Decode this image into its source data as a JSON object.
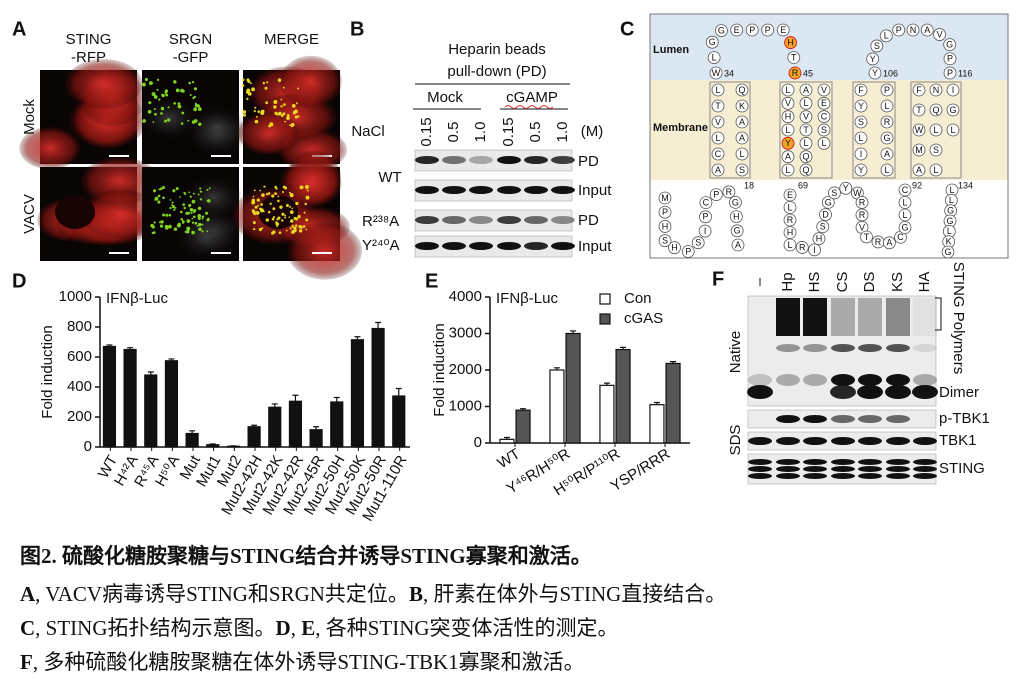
{
  "panel_a": {
    "panel_label": "A",
    "columns": [
      [
        "STING",
        "-RFP"
      ],
      [
        "SRGN",
        "-GFP"
      ],
      [
        "MERGE"
      ]
    ],
    "rows": [
      "Mock",
      "VACV"
    ]
  },
  "panel_b": {
    "panel_label": "B",
    "header": [
      "Heparin beads",
      "pull-down (PD)"
    ],
    "groups": [
      "Mock",
      "cGAMP"
    ],
    "salt_label": "NaCl",
    "concentrations": [
      "0.15",
      "0.5",
      "1.0",
      "0.15",
      "0.5",
      "1.0"
    ],
    "unit": "(M)",
    "rows": [
      {
        "name": "WT",
        "blots": [
          "PD",
          "Input"
        ]
      },
      {
        "name": "R²³⁸A",
        "blots": [
          "PD"
        ]
      },
      {
        "name": "Y²⁴⁰A",
        "blots": [
          "Input"
        ]
      }
    ]
  },
  "panel_c": {
    "panel_label": "C",
    "regions": [
      "Lumen",
      "Membrane"
    ],
    "segments": [
      "WLGGEPPEHTR",
      "YYSLPNAVGPP",
      "LTVLCASLAAKQ",
      "LVHLYALQQLTVLAVECSL",
      "FYSLIYLAGRLP",
      "FTWMALSLQNIGL",
      "MPHSHPSIPCPRGHGA",
      "ELRHLRIHSDGSYWRRVTRACGLLC",
      "LLGGLKG"
    ],
    "numbers": [
      34,
      45,
      106,
      116,
      18,
      69,
      92,
      134
    ]
  },
  "chart_data": [
    {
      "type": "bar",
      "panel_label": "D",
      "annotation": "IFNβ-Luc",
      "y_label": "Fold induction",
      "categories": [
        "WT",
        "H⁴²A",
        "R⁴⁵A",
        "H⁵⁰A",
        "Mut",
        "Mut1",
        "Mut2",
        "Mut2-42H",
        "Mut2-42K",
        "Mut2-42R",
        "Mut2-45R",
        "Mut2-50H",
        "Mut2-50K",
        "Mut2-50R",
        "Mut1-110R"
      ],
      "series": [
        {
          "color": "#111111",
          "values": [
            670,
            650,
            480,
            575,
            90,
            15,
            5,
            135,
            265,
            305,
            115,
            300,
            715,
            790,
            340
          ],
          "errors": [
            10,
            12,
            20,
            12,
            18,
            5,
            3,
            10,
            22,
            40,
            20,
            30,
            20,
            40,
            50
          ]
        }
      ],
      "ylim": [
        0,
        1000
      ],
      "yticks": [
        0,
        200,
        400,
        600,
        800,
        1000
      ]
    },
    {
      "type": "bar",
      "panel_label": "E",
      "annotation": "IFNβ-Luc",
      "y_label": "Fold induction",
      "categories": [
        "WT",
        "Y⁴⁶R/H⁵⁰R",
        "H⁵⁰R/P¹¹⁰R",
        "YSP/RRR"
      ],
      "series": [
        {
          "name": "Con",
          "color": "#ffffff",
          "values": [
            100,
            2000,
            1580,
            1050
          ],
          "errors": [
            50,
            60,
            60,
            60
          ]
        },
        {
          "name": "cGAS",
          "color": "#555555",
          "values": [
            900,
            3000,
            2560,
            2180
          ],
          "errors": [
            40,
            70,
            60,
            50
          ]
        }
      ],
      "ylim": [
        0,
        4000
      ],
      "yticks": [
        0,
        1000,
        2000,
        3000,
        4000
      ],
      "legend": "top-right"
    }
  ],
  "panel_f": {
    "panel_label": "F",
    "lanes": [
      "–",
      "Hp",
      "HS",
      "CS",
      "DS",
      "KS",
      "HA"
    ],
    "sections": [
      "Native",
      "SDS"
    ],
    "bands": [
      "STING Polymers",
      "Dimer",
      "p-TBK1",
      "TBK1",
      "STING"
    ]
  },
  "caption": {
    "title": "图2. 硫酸化糖胺聚糖与STING结合并诱导STING寡聚和激活。",
    "lines": [
      [
        {
          "label": "A",
          "text": ", VACV病毒诱导STING和SRGN共定位。"
        },
        {
          "label": "B",
          "text": ", 肝素在体外与STING直接结合。"
        }
      ],
      [
        {
          "label": "C",
          "text": ", STING拓扑结构示意图。"
        },
        {
          "label": "D",
          "text": ", "
        },
        {
          "label": "E",
          "text": ",  各种STING突变体活性的测定。"
        }
      ],
      [
        {
          "label": "F",
          "text": ", 多种硫酸化糖胺聚糖在体外诱导STING-TBK1寡聚和激活。"
        }
      ]
    ]
  }
}
